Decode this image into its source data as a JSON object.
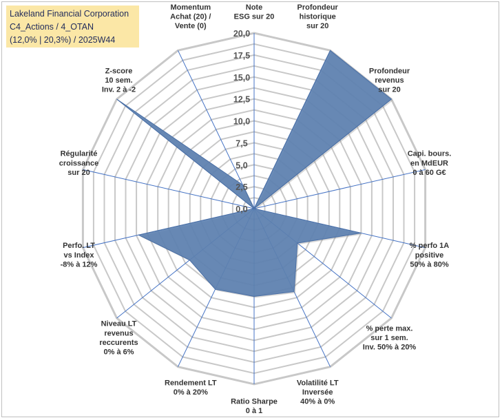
{
  "header": {
    "company": "Lakeland Financial Corporation",
    "line2": "C4_Actions / 4_OTAN",
    "line3": "(12,0% | 20,3%) / 2025W44"
  },
  "chart_data": {
    "type": "radar",
    "rmin": 0,
    "rmax": 20,
    "ticks": [
      "0,0",
      "2,5",
      "5,0",
      "7,5",
      "10,0",
      "12,5",
      "15,0",
      "17,5",
      "20,0"
    ],
    "grid": true,
    "colors": {
      "fill": "#5b7fb0",
      "stroke": "#4a6fa5",
      "grid": "#c8c8c8",
      "spoke": "#4472c4"
    },
    "axes": [
      {
        "label": [
          "Note",
          "ESG sur 20"
        ],
        "value": 0
      },
      {
        "label": [
          "Profondeur",
          "historique",
          "sur 20"
        ],
        "value": 20
      },
      {
        "label": [
          "Profondeur",
          "revenus",
          "sur 20"
        ],
        "value": 20
      },
      {
        "label": [
          "Capi. bours.",
          "en MdEUR",
          "0 à 60 G€"
        ],
        "value": 0
      },
      {
        "label": [
          "% perfo 1A",
          "positive",
          "50% à 80%"
        ],
        "value": 12.5
      },
      {
        "label": [
          "% perte max.",
          "sur 1 sem.",
          "Inv. 50% à 20%"
        ],
        "value": 6.3
      },
      {
        "label": [
          "Volatilité LT",
          "Inversée",
          "40% à 0%"
        ],
        "value": 10.5
      },
      {
        "label": [
          "Ratio Sharpe",
          "0 à 1"
        ],
        "value": 10
      },
      {
        "label": [
          "Rendement LT",
          "0% à 20%"
        ],
        "value": 10.2
      },
      {
        "label": [
          "Niveau LT",
          "revenus",
          "reccurents",
          "0% à 6%"
        ],
        "value": 9.4
      },
      {
        "label": [
          "Perfo. LT",
          "vs Index",
          "-8% à 12%"
        ],
        "value": 13.5
      },
      {
        "label": [
          "Régularité",
          "croissance",
          "sur 20"
        ],
        "value": 0
      },
      {
        "label": [
          "Z-score",
          "10 sem.",
          "Inv. 2 à -2"
        ],
        "value": 20
      },
      {
        "label": [
          "Momentum",
          "Achat (20) /",
          "Vente (0)"
        ],
        "value": 3
      }
    ]
  }
}
